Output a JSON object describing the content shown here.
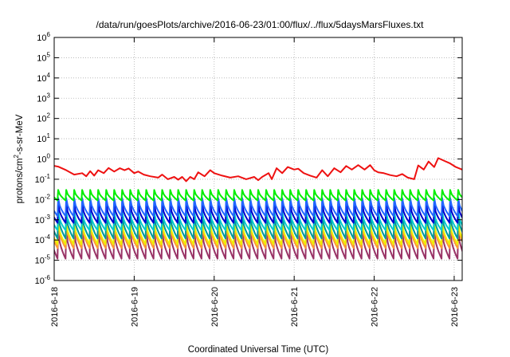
{
  "chart_data": {
    "type": "line",
    "title": "/data/run/goesPlots/archive/2016-06-23/01:00/flux/../flux/5daysMarsFluxes.txt",
    "xlabel": "Coordinated Universal Time (UTC)",
    "ylabel": {
      "base": "protons/cm",
      "sup": "2",
      "rest": "-s-sr-MeV"
    },
    "yscale": "log",
    "ylim": [
      -6,
      6
    ],
    "ytick_exponents": [
      -6,
      -5,
      -4,
      -3,
      -2,
      -1,
      0,
      1,
      2,
      3,
      4,
      5,
      6
    ],
    "ytick_base": "10",
    "xlim": [
      0,
      5.1
    ],
    "xticks": [
      {
        "x": 0,
        "label": "2016-6-18"
      },
      {
        "x": 1,
        "label": "2016-6-19"
      },
      {
        "x": 2,
        "label": "2016-6-20"
      },
      {
        "x": 3,
        "label": "2016-6-21"
      },
      {
        "x": 4,
        "label": "2016-6-22"
      },
      {
        "x": 5,
        "label": "2016-6-23"
      }
    ],
    "grid": true,
    "x_unit": "days since 2016-06-18 00:00 UTC",
    "sawtooth": {
      "start": -0.05,
      "step": 0.1,
      "count": 52
    },
    "series": [
      {
        "color": "#ee1111",
        "style": "wander",
        "points": [
          [
            -0.05,
            0.5
          ],
          [
            0.05,
            0.42
          ],
          [
            0.15,
            0.28
          ],
          [
            0.25,
            0.17
          ],
          [
            0.35,
            0.2
          ],
          [
            0.4,
            0.14
          ],
          [
            0.45,
            0.25
          ],
          [
            0.5,
            0.15
          ],
          [
            0.55,
            0.28
          ],
          [
            0.62,
            0.2
          ],
          [
            0.68,
            0.36
          ],
          [
            0.75,
            0.24
          ],
          [
            0.82,
            0.35
          ],
          [
            0.88,
            0.28
          ],
          [
            0.93,
            0.34
          ],
          [
            1.0,
            0.2
          ],
          [
            1.05,
            0.24
          ],
          [
            1.12,
            0.17
          ],
          [
            1.2,
            0.14
          ],
          [
            1.3,
            0.12
          ],
          [
            1.35,
            0.17
          ],
          [
            1.42,
            0.1
          ],
          [
            1.5,
            0.13
          ],
          [
            1.55,
            0.095
          ],
          [
            1.6,
            0.13
          ],
          [
            1.65,
            0.08
          ],
          [
            1.7,
            0.13
          ],
          [
            1.75,
            0.1
          ],
          [
            1.8,
            0.22
          ],
          [
            1.88,
            0.14
          ],
          [
            1.95,
            0.28
          ],
          [
            2.0,
            0.2
          ],
          [
            2.1,
            0.15
          ],
          [
            2.2,
            0.12
          ],
          [
            2.3,
            0.14
          ],
          [
            2.4,
            0.1
          ],
          [
            2.5,
            0.13
          ],
          [
            2.55,
            0.09
          ],
          [
            2.6,
            0.13
          ],
          [
            2.68,
            0.2
          ],
          [
            2.72,
            0.1
          ],
          [
            2.78,
            0.35
          ],
          [
            2.85,
            0.2
          ],
          [
            2.92,
            0.4
          ],
          [
            3.0,
            0.3
          ],
          [
            3.05,
            0.33
          ],
          [
            3.12,
            0.2
          ],
          [
            3.2,
            0.15
          ],
          [
            3.28,
            0.12
          ],
          [
            3.35,
            0.28
          ],
          [
            3.42,
            0.14
          ],
          [
            3.5,
            0.35
          ],
          [
            3.58,
            0.22
          ],
          [
            3.65,
            0.45
          ],
          [
            3.72,
            0.3
          ],
          [
            3.8,
            0.5
          ],
          [
            3.88,
            0.3
          ],
          [
            3.95,
            0.5
          ],
          [
            4.0,
            0.28
          ],
          [
            4.05,
            0.22
          ],
          [
            4.12,
            0.2
          ],
          [
            4.2,
            0.16
          ],
          [
            4.28,
            0.14
          ],
          [
            4.35,
            0.18
          ],
          [
            4.42,
            0.12
          ],
          [
            4.5,
            0.1
          ],
          [
            4.55,
            0.48
          ],
          [
            4.62,
            0.3
          ],
          [
            4.68,
            0.75
          ],
          [
            4.75,
            0.4
          ],
          [
            4.8,
            1.1
          ],
          [
            4.88,
            0.8
          ],
          [
            4.95,
            0.6
          ],
          [
            5.02,
            0.4
          ],
          [
            5.1,
            0.3
          ]
        ]
      },
      {
        "color": "#00ee00",
        "style": "saw",
        "peak": 0.03,
        "trough": 0.009
      },
      {
        "color": "#2266ff",
        "style": "saw",
        "peak": 0.012,
        "trough": 0.0015
      },
      {
        "color": "#0000cc",
        "style": "saw",
        "peak": 0.006,
        "trough": 0.0007
      },
      {
        "color": "#00cccc",
        "style": "saw",
        "peak": 0.0025,
        "trough": 0.0003
      },
      {
        "color": "#009999",
        "style": "saw",
        "peak": 0.0018,
        "trough": 0.00012
      },
      {
        "color": "#eeee00",
        "style": "saw",
        "peak": 0.0008,
        "trough": 6e-05
      },
      {
        "color": "#ff9933",
        "style": "saw",
        "peak": 0.0006,
        "trough": 4e-05
      },
      {
        "color": "#993366",
        "style": "saw",
        "peak": 0.0003,
        "trough": 1.2e-05
      }
    ]
  }
}
